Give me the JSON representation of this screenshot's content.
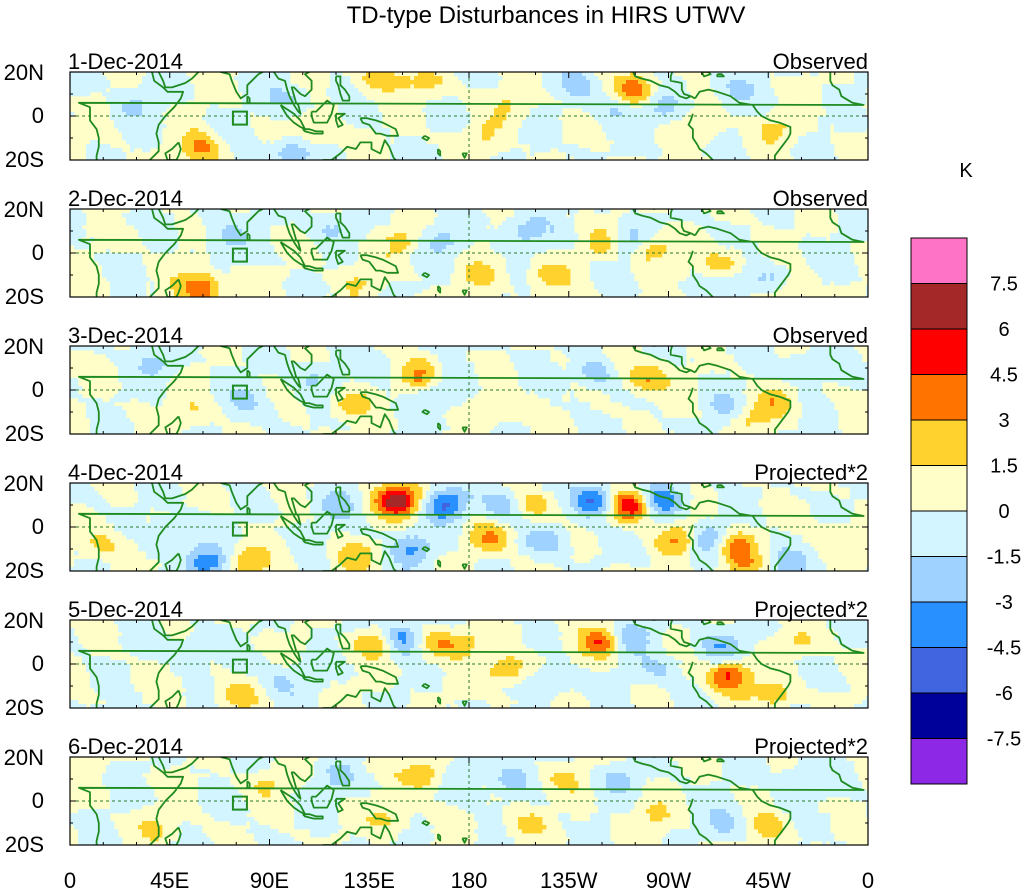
{
  "title": "TD-type Disturbances in HIRS UTWV",
  "units": "K",
  "panels": [
    {
      "date": "1-Dec-2014",
      "label": "Observed",
      "blobs": [
        [
          100,
          8,
          -2.0
        ],
        [
          110,
          -8,
          2.2
        ],
        [
          60,
          -15,
          3.2
        ],
        [
          100,
          -16,
          -3.0
        ],
        [
          140,
          18,
          2.5
        ],
        [
          160,
          15,
          1.8
        ],
        [
          188,
          -10,
          1.6
        ],
        [
          230,
          14,
          -1.8
        ],
        [
          245,
          4,
          -1.5
        ],
        [
          255,
          12,
          4.0
        ],
        [
          268,
          4,
          -2.0
        ],
        [
          285,
          -6,
          1.5
        ],
        [
          300,
          12,
          -1.5
        ],
        [
          318,
          -6,
          2.0
        ],
        [
          30,
          6,
          -1.5
        ],
        [
          200,
          5,
          1.5
        ]
      ]
    },
    {
      "date": "2-Dec-2014",
      "label": "Observed",
      "blobs": [
        [
          60,
          -16,
          4.5
        ],
        [
          70,
          8,
          -1.8
        ],
        [
          150,
          6,
          1.8
        ],
        [
          168,
          6,
          -2.0
        ],
        [
          185,
          -10,
          1.8
        ],
        [
          205,
          10,
          -2.5
        ],
        [
          215,
          -10,
          2.0
        ],
        [
          244,
          5,
          3.5
        ],
        [
          250,
          5,
          -4.0
        ],
        [
          262,
          2,
          3.0
        ],
        [
          295,
          -5,
          2.5
        ],
        [
          300,
          -15,
          -1.5
        ],
        [
          315,
          -12,
          -1.8
        ],
        [
          325,
          -18,
          2.2
        ],
        [
          120,
          12,
          -1.6
        ],
        [
          130,
          -12,
          1.5
        ]
      ]
    },
    {
      "date": "3-Dec-2014",
      "label": "Observed",
      "blobs": [
        [
          38,
          12,
          -1.8
        ],
        [
          82,
          -5,
          -1.6
        ],
        [
          110,
          6,
          -1.6
        ],
        [
          125,
          -6,
          2.0
        ],
        [
          150,
          10,
          -1.8
        ],
        [
          157,
          8,
          4.2
        ],
        [
          168,
          -2,
          -1.6
        ],
        [
          198,
          -8,
          1.8
        ],
        [
          238,
          8,
          -3.5
        ],
        [
          245,
          10,
          1.5
        ],
        [
          260,
          5,
          3.0
        ],
        [
          298,
          -8,
          -2.2
        ],
        [
          305,
          -12,
          2.2
        ],
        [
          318,
          -5,
          2.0
        ],
        [
          330,
          10,
          -1.6
        ],
        [
          55,
          -10,
          1.5
        ]
      ]
    },
    {
      "date": "4-Dec-2014",
      "label": "Projected*2",
      "blobs": [
        [
          148,
          12,
          7.0
        ],
        [
          155,
          -10,
          -3.0
        ],
        [
          170,
          10,
          -4.5
        ],
        [
          190,
          -5,
          3.0
        ],
        [
          195,
          10,
          -3.0
        ],
        [
          208,
          10,
          3.0
        ],
        [
          215,
          -6,
          -2.5
        ],
        [
          237,
          12,
          -5.5
        ],
        [
          252,
          10,
          6.5
        ],
        [
          268,
          12,
          -4.5
        ],
        [
          276,
          -5,
          3.0
        ],
        [
          290,
          -6,
          -4.5
        ],
        [
          297,
          -8,
          5.0
        ],
        [
          305,
          -18,
          2.5
        ],
        [
          322,
          -16,
          -2.5
        ],
        [
          62,
          -16,
          -4.0
        ],
        [
          80,
          -16,
          3.0
        ],
        [
          48,
          -5,
          -2.0
        ],
        [
          120,
          10,
          -2.0
        ],
        [
          128,
          -14,
          2.0
        ],
        [
          18,
          -8,
          1.8
        ],
        [
          345,
          -5,
          1.6
        ]
      ]
    },
    {
      "date": "5-Dec-2014",
      "label": "Projected*2",
      "blobs": [
        [
          138,
          10,
          3.0
        ],
        [
          150,
          12,
          -4.5
        ],
        [
          165,
          10,
          3.0
        ],
        [
          178,
          10,
          2.0
        ],
        [
          198,
          -3,
          3.0
        ],
        [
          215,
          -8,
          -2.0
        ],
        [
          240,
          10,
          4.5
        ],
        [
          252,
          12,
          -3.0
        ],
        [
          265,
          -2,
          -1.8
        ],
        [
          297,
          -6,
          5.0
        ],
        [
          293,
          8,
          -2.5
        ],
        [
          318,
          -14,
          2.5
        ],
        [
          330,
          10,
          1.8
        ],
        [
          75,
          -14,
          2.0
        ],
        [
          58,
          8,
          -1.5
        ],
        [
          95,
          -8,
          -1.8
        ]
      ]
    },
    {
      "date": "6-Dec-2014",
      "label": "Projected*2",
      "blobs": [
        [
          120,
          10,
          -1.8
        ],
        [
          145,
          -8,
          1.8
        ],
        [
          160,
          12,
          3.0
        ],
        [
          178,
          10,
          -1.6
        ],
        [
          198,
          10,
          -2.0
        ],
        [
          205,
          -10,
          1.8
        ],
        [
          220,
          10,
          1.6
        ],
        [
          248,
          10,
          -1.8
        ],
        [
          262,
          -6,
          1.6
        ],
        [
          295,
          -10,
          -1.8
        ],
        [
          315,
          -12,
          2.0
        ],
        [
          328,
          10,
          -1.6
        ],
        [
          40,
          -12,
          1.5
        ],
        [
          90,
          8,
          1.5
        ]
      ]
    }
  ],
  "lat_labels": [
    "20N",
    "0",
    "20S"
  ],
  "lon_labels": [
    "0",
    "45E",
    "90E",
    "135E",
    "180",
    "135W",
    "90W",
    "45W",
    "0"
  ],
  "lon_values": [
    0,
    45,
    90,
    135,
    180,
    225,
    270,
    315,
    360
  ],
  "colorbar": {
    "labels": [
      "7.5",
      "6",
      "4.5",
      "3",
      "1.5",
      "0",
      "-1.5",
      "-3",
      "-4.5",
      "-6",
      "-7.5"
    ],
    "levels": [
      7.5,
      6,
      4.5,
      3,
      1.5,
      0,
      -1.5,
      -3,
      -4.5,
      -6,
      -7.5
    ],
    "colors": [
      "#ff73c6",
      "#a52828",
      "#ff0000",
      "#ff7300",
      "#ffd22d",
      "#fffdc8",
      "#d2f5ff",
      "#a0d2ff",
      "#2891ff",
      "#4164e1",
      "#00009b",
      "#8c28e6"
    ]
  },
  "colors": {
    "coast": "#1f8a1f",
    "text": "#000000"
  }
}
